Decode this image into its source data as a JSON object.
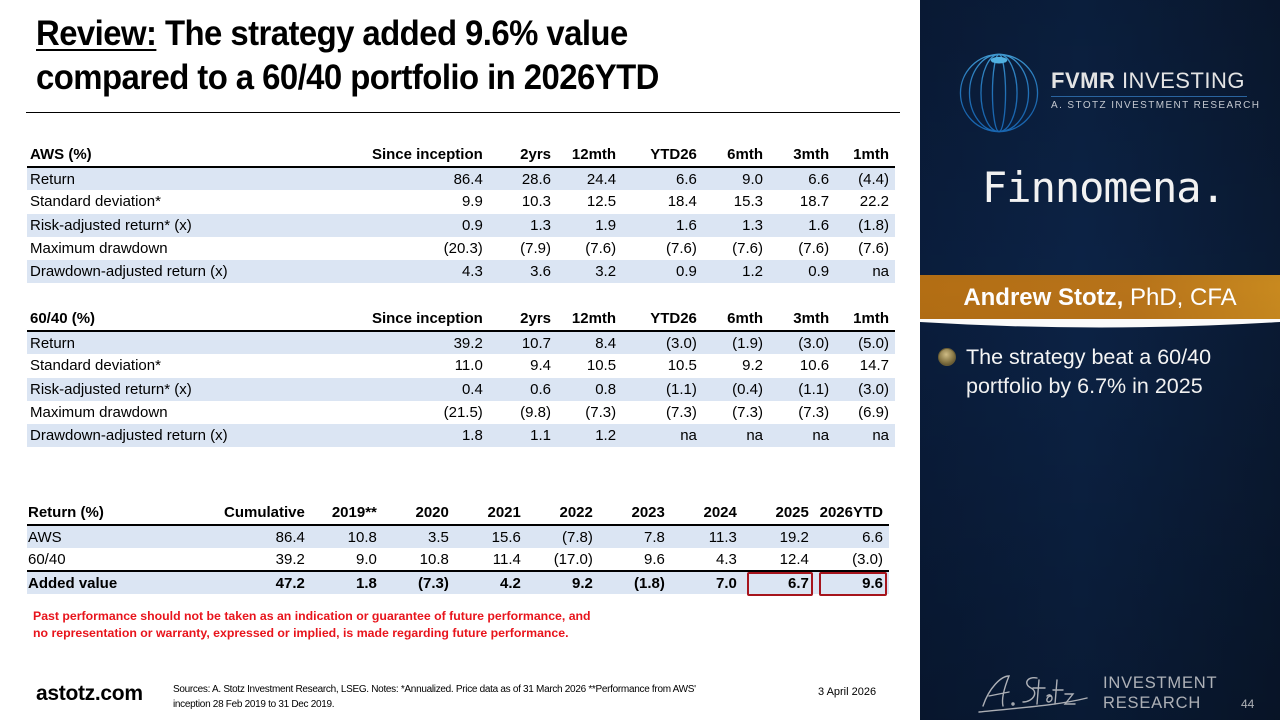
{
  "title": {
    "prefix": "Review:",
    "line1_rest": " The strategy added 9.6% value",
    "line2": "compared to a 60/40 portfolio in 2026YTD"
  },
  "columns_period": [
    "Since inception",
    "2yrs",
    "12mth",
    "YTD26",
    "6mth",
    "3mth",
    "1mth"
  ],
  "aws_table": {
    "header": "AWS (%)",
    "rows": [
      {
        "label": "Return",
        "values": [
          "86.4",
          "28.6",
          "24.4",
          "6.6",
          "9.0",
          "6.6",
          "(4.4)"
        ]
      },
      {
        "label": "Standard deviation*",
        "values": [
          "9.9",
          "10.3",
          "12.5",
          "18.4",
          "15.3",
          "18.7",
          "22.2"
        ]
      },
      {
        "label": "Risk-adjusted return* (x)",
        "values": [
          "0.9",
          "1.3",
          "1.9",
          "1.6",
          "1.3",
          "1.6",
          "(1.8)"
        ]
      },
      {
        "label": "Maximum drawdown",
        "values": [
          "(20.3)",
          "(7.9)",
          "(7.6)",
          "(7.6)",
          "(7.6)",
          "(7.6)",
          "(7.6)"
        ]
      },
      {
        "label": "Drawdown-adjusted return (x)",
        "values": [
          "4.3",
          "3.6",
          "3.2",
          "0.9",
          "1.2",
          "0.9",
          "na"
        ]
      }
    ]
  },
  "sixty_forty_table": {
    "header": "60/40 (%)",
    "rows": [
      {
        "label": "Return",
        "values": [
          "39.2",
          "10.7",
          "8.4",
          "(3.0)",
          "(1.9)",
          "(3.0)",
          "(5.0)"
        ]
      },
      {
        "label": "Standard deviation*",
        "values": [
          "11.0",
          "9.4",
          "10.5",
          "10.5",
          "9.2",
          "10.6",
          "14.7"
        ]
      },
      {
        "label": "Risk-adjusted return* (x)",
        "values": [
          "0.4",
          "0.6",
          "0.8",
          "(1.1)",
          "(0.4)",
          "(1.1)",
          "(3.0)"
        ]
      },
      {
        "label": "Maximum drawdown",
        "values": [
          "(21.5)",
          "(9.8)",
          "(7.3)",
          "(7.3)",
          "(7.3)",
          "(7.3)",
          "(6.9)"
        ]
      },
      {
        "label": "Drawdown-adjusted return (x)",
        "values": [
          "1.8",
          "1.1",
          "1.2",
          "na",
          "na",
          "na",
          "na"
        ]
      }
    ]
  },
  "returns_table": {
    "header": "Return (%)",
    "columns": [
      "Cumulative",
      "2019**",
      "2020",
      "2021",
      "2022",
      "2023",
      "2024",
      "2025",
      "2026YTD"
    ],
    "rows": [
      {
        "label": "AWS",
        "values": [
          "86.4",
          "10.8",
          "3.5",
          "15.6",
          "(7.8)",
          "7.8",
          "11.3",
          "19.2",
          "6.6"
        ]
      },
      {
        "label": "60/40",
        "values": [
          "39.2",
          "9.0",
          "10.8",
          "11.4",
          "(17.0)",
          "9.6",
          "4.3",
          "12.4",
          "(3.0)"
        ]
      },
      {
        "label": "Added value",
        "values": [
          "47.2",
          "1.8",
          "(7.3)",
          "4.2",
          "9.2",
          "(1.8)",
          "7.0",
          "6.7",
          "9.6"
        ]
      }
    ],
    "highlighted_cells": [
      "2025",
      "2026YTD"
    ],
    "highlight_color": "#a6141c"
  },
  "chart_data": {
    "type": "table",
    "title": "Review: The strategy added 9.6% value compared to a 60/40 portfolio in 2026YTD",
    "tables": [
      {
        "name": "AWS (%)",
        "columns": [
          "Since inception",
          "2yrs",
          "12mth",
          "YTD26",
          "6mth",
          "3mth",
          "1mth"
        ],
        "rows": {
          "Return": [
            86.4,
            28.6,
            24.4,
            6.6,
            9.0,
            6.6,
            -4.4
          ],
          "Standard deviation*": [
            9.9,
            10.3,
            12.5,
            18.4,
            15.3,
            18.7,
            22.2
          ],
          "Risk-adjusted return* (x)": [
            0.9,
            1.3,
            1.9,
            1.6,
            1.3,
            1.6,
            -1.8
          ],
          "Maximum drawdown": [
            -20.3,
            -7.9,
            -7.6,
            -7.6,
            -7.6,
            -7.6,
            -7.6
          ],
          "Drawdown-adjusted return (x)": [
            4.3,
            3.6,
            3.2,
            0.9,
            1.2,
            0.9,
            null
          ]
        }
      },
      {
        "name": "60/40 (%)",
        "columns": [
          "Since inception",
          "2yrs",
          "12mth",
          "YTD26",
          "6mth",
          "3mth",
          "1mth"
        ],
        "rows": {
          "Return": [
            39.2,
            10.7,
            8.4,
            -3.0,
            -1.9,
            -3.0,
            -5.0
          ],
          "Standard deviation*": [
            11.0,
            9.4,
            10.5,
            10.5,
            9.2,
            10.6,
            14.7
          ],
          "Risk-adjusted return* (x)": [
            0.4,
            0.6,
            0.8,
            -1.1,
            -0.4,
            -1.1,
            -3.0
          ],
          "Maximum drawdown": [
            -21.5,
            -9.8,
            -7.3,
            -7.3,
            -7.3,
            -7.3,
            -6.9
          ],
          "Drawdown-adjusted return (x)": [
            1.8,
            1.1,
            1.2,
            null,
            null,
            null,
            null
          ]
        }
      },
      {
        "name": "Return (%)",
        "columns": [
          "Cumulative",
          "2019**",
          "2020",
          "2021",
          "2022",
          "2023",
          "2024",
          "2025",
          "2026YTD"
        ],
        "rows": {
          "AWS": [
            86.4,
            10.8,
            3.5,
            15.6,
            -7.8,
            7.8,
            11.3,
            19.2,
            6.6
          ],
          "60/40": [
            39.2,
            9.0,
            10.8,
            11.4,
            -17.0,
            9.6,
            4.3,
            12.4,
            -3.0
          ],
          "Added value": [
            47.2,
            1.8,
            -7.3,
            4.2,
            9.2,
            -1.8,
            7.0,
            6.7,
            9.6
          ]
        }
      }
    ]
  },
  "disclaimer": {
    "line1": "Past performance should not be taken as an indication or guarantee of future performance, and",
    "line2": "no representation or warranty, expressed or implied, is made regarding future performance.",
    "color": "#e8141c"
  },
  "footer": {
    "site": "astotz.com",
    "sources_line1": "Sources: A. Stotz Investment Research, LSEG. Notes: *Annualized. Price data as of 31 March 2026 **Performance from AWS'",
    "sources_line2": "inception 28 Feb 2019 to 31 Dec 2019.",
    "date": "3 April 2026"
  },
  "sidebar": {
    "logo_main_bold": "FVMR",
    "logo_main_light": " INVESTING",
    "logo_sub": "A. STOTZ INVESTMENT RESEARCH",
    "partner": "Finnomena.",
    "presenter_name": "Andrew Stotz,",
    "presenter_credentials": " PhD, CFA",
    "bullet": "The strategy beat a 60/40 portfolio by 6.7% in 2025",
    "brand_line1": "INVESTMENT",
    "brand_line2": "RESEARCH",
    "page_number": "44",
    "accent_color": "#b36e14",
    "background_color": "#0c2346"
  }
}
